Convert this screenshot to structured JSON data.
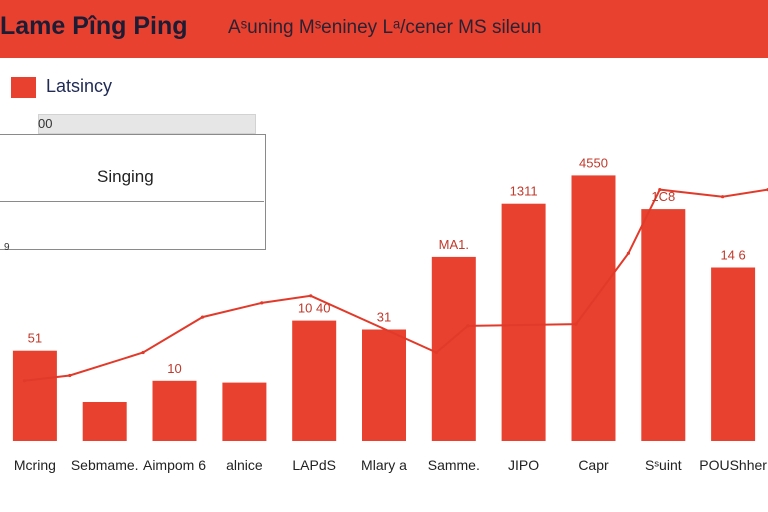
{
  "header": {
    "title": "Lame Pîng Ping",
    "subtitle": "Aˢuning Mˢeniney Lᵃ/cener MS sileun"
  },
  "legend": {
    "swatch_color": "#e8412f",
    "label": "Latsincy"
  },
  "filter": {
    "value": "00"
  },
  "dropdown": {
    "option": "Singing"
  },
  "side_tick": "9",
  "colors": {
    "accent": "#e8412f",
    "line": "#e23a2a",
    "label": "#c0392b",
    "axis_text": "#222222"
  },
  "chart_data": {
    "type": "bar",
    "categories": [
      "Mcring",
      "Sebmame.",
      "Aimpom 6",
      "alnice",
      "LAPdS",
      "Mlary a",
      "Samme.",
      "JIPO",
      "Capr",
      "Sˢuint",
      "POUShher"
    ],
    "values": [
      51,
      22,
      34,
      33,
      68,
      63,
      104,
      134,
      150,
      131,
      98
    ],
    "data_labels": [
      "51",
      "",
      "10",
      "",
      "10 40",
      "31",
      "MA1.",
      "1311",
      "4550",
      "1C8",
      "14 6"
    ],
    "line": {
      "x_positions": [
        -0.15,
        0.5,
        1.55,
        2.4,
        3.25,
        3.95,
        5.75,
        6.2,
        7.75,
        8.5,
        8.95,
        9.85,
        10.5
      ],
      "values": [
        34,
        37,
        50,
        70,
        78,
        82,
        50,
        65,
        66,
        106,
        142,
        138,
        142
      ]
    },
    "ylim": [
      0,
      170
    ]
  }
}
